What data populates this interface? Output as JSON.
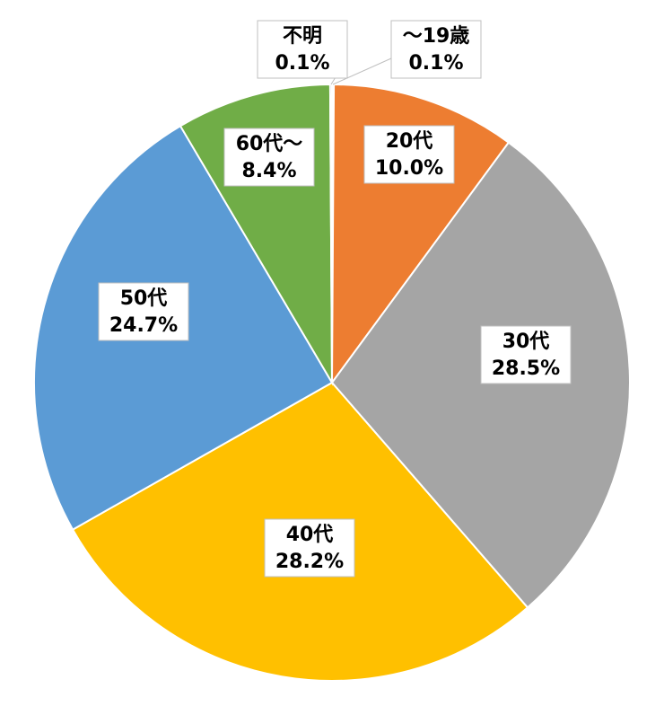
{
  "chart_data": {
    "type": "pie",
    "categories": [
      "～19歳",
      "20代",
      "30代",
      "40代",
      "50代",
      "60代～",
      "不明"
    ],
    "values": [
      0.1,
      10.0,
      28.5,
      28.2,
      24.7,
      8.4,
      0.1
    ],
    "value_labels": [
      "0.1%",
      "10.0%",
      "28.5%",
      "28.2%",
      "24.7%",
      "8.4%",
      "0.1%"
    ],
    "colors": [
      "#4472c4",
      "#ed7d31",
      "#a5a5a5",
      "#ffc000",
      "#5b9bd5",
      "#70ad47",
      "#264478"
    ]
  }
}
